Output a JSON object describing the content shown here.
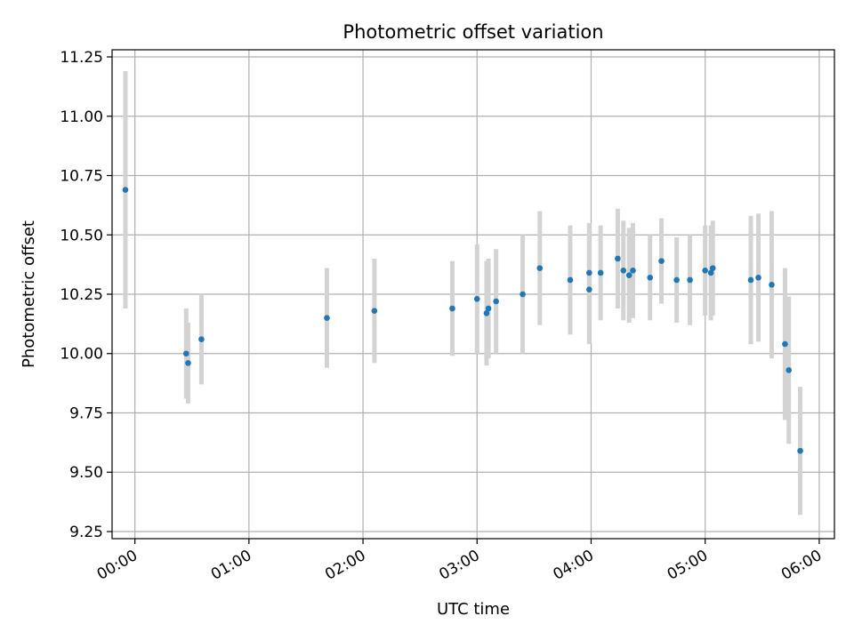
{
  "chart_data": {
    "type": "scatter",
    "title": "Photometric offset variation",
    "xlabel": "UTC time",
    "ylabel": "Photometric offset",
    "xlim": [
      "23:48",
      "06:08"
    ],
    "ylim": [
      9.22,
      11.28
    ],
    "x_ticks": [
      "00:00",
      "01:00",
      "02:00",
      "03:00",
      "04:00",
      "05:00",
      "06:00"
    ],
    "y_ticks": [
      "9.25",
      "9.50",
      "9.75",
      "10.00",
      "10.25",
      "10.50",
      "10.75",
      "11.00",
      "11.25"
    ],
    "grid": true,
    "point_color": "#1f77b4",
    "errorbar_color": "#d3d3d3",
    "points": [
      {
        "x": "23:55",
        "y": 10.69,
        "err": 0.5
      },
      {
        "x": "00:27",
        "y": 10.0,
        "err": 0.19
      },
      {
        "x": "00:28",
        "y": 9.96,
        "err": 0.17
      },
      {
        "x": "00:35",
        "y": 10.06,
        "err": 0.19
      },
      {
        "x": "01:41",
        "y": 10.15,
        "err": 0.21
      },
      {
        "x": "02:06",
        "y": 10.18,
        "err": 0.22
      },
      {
        "x": "02:47",
        "y": 10.19,
        "err": 0.2
      },
      {
        "x": "03:00",
        "y": 10.23,
        "err": 0.23
      },
      {
        "x": "03:05",
        "y": 10.17,
        "err": 0.22
      },
      {
        "x": "03:06",
        "y": 10.19,
        "err": 0.21
      },
      {
        "x": "03:10",
        "y": 10.22,
        "err": 0.22
      },
      {
        "x": "03:24",
        "y": 10.25,
        "err": 0.25
      },
      {
        "x": "03:33",
        "y": 10.36,
        "err": 0.24
      },
      {
        "x": "03:49",
        "y": 10.31,
        "err": 0.23
      },
      {
        "x": "03:59",
        "y": 10.34,
        "err": 0.21
      },
      {
        "x": "03:59",
        "y": 10.27,
        "err": 0.23
      },
      {
        "x": "04:05",
        "y": 10.34,
        "err": 0.2
      },
      {
        "x": "04:14",
        "y": 10.4,
        "err": 0.21
      },
      {
        "x": "04:17",
        "y": 10.35,
        "err": 0.21
      },
      {
        "x": "04:20",
        "y": 10.33,
        "err": 0.2
      },
      {
        "x": "04:22",
        "y": 10.35,
        "err": 0.2
      },
      {
        "x": "04:31",
        "y": 10.32,
        "err": 0.18
      },
      {
        "x": "04:37",
        "y": 10.39,
        "err": 0.18
      },
      {
        "x": "04:45",
        "y": 10.31,
        "err": 0.18
      },
      {
        "x": "04:52",
        "y": 10.31,
        "err": 0.19
      },
      {
        "x": "05:00",
        "y": 10.35,
        "err": 0.19
      },
      {
        "x": "05:03",
        "y": 10.34,
        "err": 0.2
      },
      {
        "x": "05:04",
        "y": 10.36,
        "err": 0.2
      },
      {
        "x": "05:24",
        "y": 10.31,
        "err": 0.27
      },
      {
        "x": "05:28",
        "y": 10.32,
        "err": 0.27
      },
      {
        "x": "05:35",
        "y": 10.29,
        "err": 0.31
      },
      {
        "x": "05:42",
        "y": 10.04,
        "err": 0.32
      },
      {
        "x": "05:44",
        "y": 9.93,
        "err": 0.31
      },
      {
        "x": "05:50",
        "y": 9.59,
        "err": 0.27
      }
    ]
  }
}
